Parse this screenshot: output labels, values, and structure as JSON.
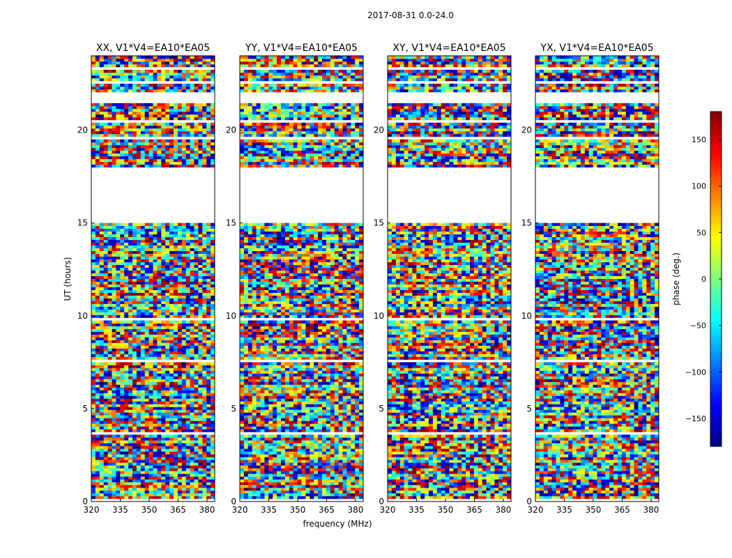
{
  "figure": {
    "title": "2017-08-31 0.0-24.0",
    "xlabel": "frequency (MHz)",
    "ylabel": "UT (hours)",
    "colorbar_label": "phase (deg.)"
  },
  "chart_data": {
    "type": "heatmap",
    "title": "2017-08-31 0.0-24.0",
    "xlabel": "frequency (MHz)",
    "ylabel": "UT (hours)",
    "xlim": [
      320,
      384
    ],
    "ylim": [
      0,
      24
    ],
    "x_ticks": [
      320,
      335,
      350,
      365,
      380
    ],
    "y_ticks": [
      0,
      5,
      10,
      15,
      20
    ],
    "colorbar": {
      "label": "phase (deg.)",
      "range": [
        -180,
        180
      ],
      "ticks": [
        150,
        100,
        50,
        0,
        -50,
        -100,
        -150
      ],
      "colormap": "jet",
      "colors": [
        "#00007f",
        "#0000ff",
        "#007fff",
        "#00ffff",
        "#7fff7f",
        "#ffff00",
        "#ff7f00",
        "#ff0000",
        "#7f0000"
      ]
    },
    "panels": [
      {
        "name": "XX, V1*V4=EA10*EA05"
      },
      {
        "name": "YY, V1*V4=EA10*EA05"
      },
      {
        "name": "XY, V1*V4=EA10*EA05"
      },
      {
        "name": "YX, V1*V4=EA10*EA05"
      }
    ],
    "data_gaps_ut_hours": [
      [
        0.0,
        0.1
      ],
      [
        0.45,
        0.52
      ],
      [
        1.35,
        1.42
      ],
      [
        2.5,
        2.58
      ],
      [
        3.55,
        3.68
      ],
      [
        5.95,
        6.02
      ],
      [
        7.45,
        7.6
      ],
      [
        8.05,
        8.12
      ],
      [
        8.5,
        8.56
      ],
      [
        9.8,
        9.86
      ],
      [
        11.95,
        12.02
      ],
      [
        12.75,
        12.82
      ],
      [
        13.45,
        13.55
      ],
      [
        15.0,
        15.2
      ],
      [
        15.2,
        18.0
      ],
      [
        19.5,
        19.6
      ],
      [
        20.45,
        20.52
      ],
      [
        21.4,
        21.5
      ],
      [
        21.5,
        22.0
      ],
      [
        22.5,
        22.62
      ],
      [
        23.3,
        23.38
      ]
    ]
  }
}
